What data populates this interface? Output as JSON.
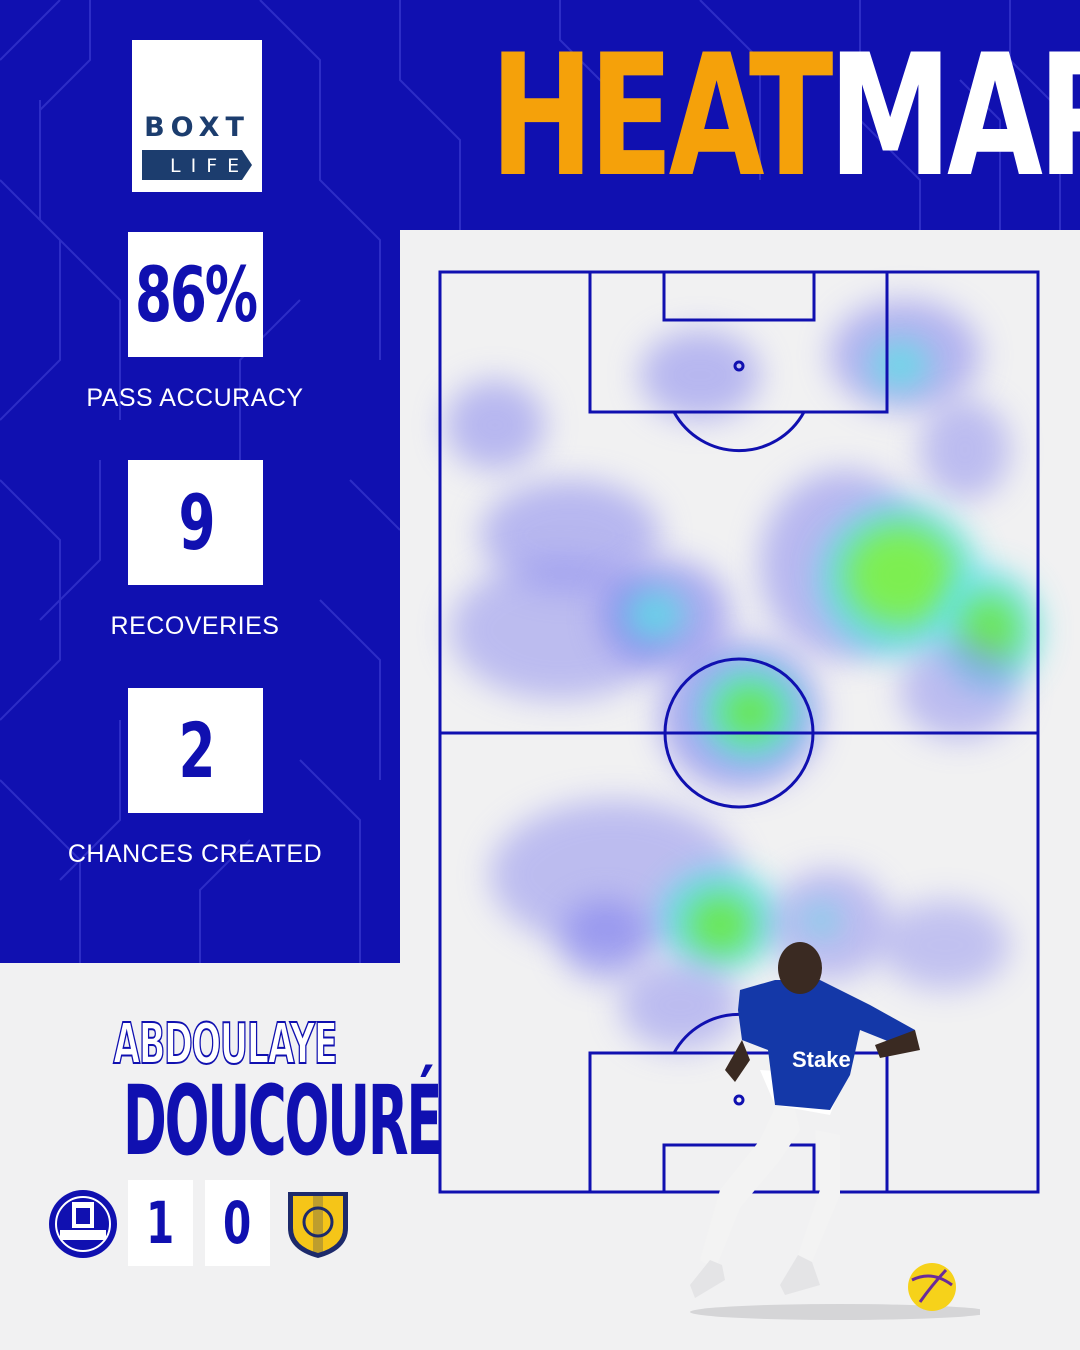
{
  "sponsor": {
    "line1": "BOXT",
    "line2": "LIFE"
  },
  "title": {
    "part1": "HEAT",
    "part2": "MAP"
  },
  "stats": [
    {
      "value": "86%",
      "label": "PASS ACCURACY"
    },
    {
      "value": "9",
      "label": "RECOVERIES"
    },
    {
      "value": "2",
      "label": "CHANCES CREATED"
    }
  ],
  "player": {
    "first_name": "ABDOULAYE",
    "last_name": "DOUCOURÉ",
    "shirt_sponsor": "Stake"
  },
  "match": {
    "home_score": "1",
    "away_score": "0",
    "home_crest": "everton-crest-icon",
    "away_crest": "leeds-crest-icon"
  },
  "colors": {
    "brand_blue": "#1010b0",
    "accent_orange": "#f5a10a",
    "background": "#f1f1f2"
  }
}
